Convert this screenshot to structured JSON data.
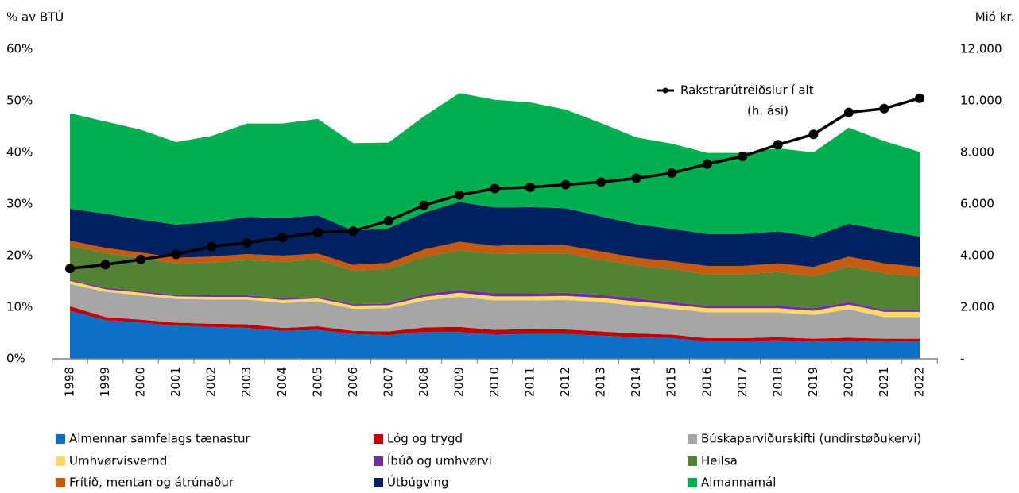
{
  "chart_data": {
    "type": "stacked_area_line",
    "y_label": "% av BTÚ",
    "y2_label": "Mió kr.",
    "categories": [
      "1998",
      "1999",
      "2000",
      "2001",
      "2002",
      "2003",
      "2004",
      "2005",
      "2006",
      "2007",
      "2008",
      "2009",
      "2010",
      "2011",
      "2012",
      "2013",
      "2014",
      "2015",
      "2016",
      "2017",
      "2018",
      "2019",
      "2020",
      "2021",
      "2022"
    ],
    "ylim": [
      0,
      60
    ],
    "yticks": [
      {
        "value": 0,
        "label": "0%"
      },
      {
        "value": 10,
        "label": "10%"
      },
      {
        "value": 20,
        "label": "20%"
      },
      {
        "value": 30,
        "label": "30%"
      },
      {
        "value": 40,
        "label": "40%"
      },
      {
        "value": 50,
        "label": "50%"
      },
      {
        "value": 60,
        "label": "60%"
      }
    ],
    "y2lim": [
      0,
      12000
    ],
    "y2ticks": [
      {
        "value": 0,
        "label": "-"
      },
      {
        "value": 2000,
        "label": "2.000"
      },
      {
        "value": 4000,
        "label": "4.000"
      },
      {
        "value": 6000,
        "label": "6.000"
      },
      {
        "value": 8000,
        "label": "8.000"
      },
      {
        "value": 10000,
        "label": "10.000"
      },
      {
        "value": 12000,
        "label": "12.000"
      }
    ],
    "series": [
      {
        "name": "Almennar samfelags tænastur",
        "color": "#0f6fc6",
        "values": [
          9.3,
          7.5,
          7.0,
          6.4,
          6.2,
          6.0,
          5.4,
          5.6,
          4.8,
          4.6,
          5.2,
          5.2,
          4.7,
          4.8,
          4.8,
          4.5,
          4.2,
          4.0,
          3.4,
          3.4,
          3.6,
          3.3,
          3.5,
          3.3,
          3.4
        ]
      },
      {
        "name": "Lóg og trygd",
        "color": "#c00000",
        "values": [
          0.9,
          0.6,
          0.6,
          0.6,
          0.6,
          0.7,
          0.6,
          0.7,
          0.6,
          0.7,
          0.9,
          1.0,
          0.9,
          1.0,
          0.9,
          0.8,
          0.7,
          0.7,
          0.6,
          0.6,
          0.6,
          0.6,
          0.6,
          0.6,
          0.5
        ]
      },
      {
        "name": "Búskaparviðurskifti (undirstøðukervi)",
        "color": "#a6a6a6",
        "values": [
          4.3,
          4.9,
          4.7,
          4.6,
          4.7,
          4.8,
          4.8,
          4.8,
          4.3,
          4.5,
          5.2,
          5.8,
          5.7,
          5.5,
          5.7,
          5.7,
          5.4,
          5.0,
          5.0,
          5.0,
          4.8,
          4.6,
          5.5,
          4.2,
          4.2
        ]
      },
      {
        "name": "Umhvørvisvernd",
        "color": "#ffd966",
        "values": [
          0.6,
          0.5,
          0.5,
          0.5,
          0.5,
          0.5,
          0.6,
          0.6,
          0.6,
          0.6,
          0.7,
          0.8,
          0.8,
          0.8,
          0.8,
          0.8,
          0.8,
          0.8,
          0.8,
          0.8,
          0.8,
          0.8,
          0.9,
          1.0,
          1.0
        ]
      },
      {
        "name": "Íbúð og umhvørvi",
        "color": "#7030a0",
        "values": [
          0.2,
          0.3,
          0.3,
          0.3,
          0.3,
          0.3,
          0.3,
          0.3,
          0.3,
          0.3,
          0.5,
          0.6,
          0.6,
          0.6,
          0.6,
          0.6,
          0.6,
          0.5,
          0.5,
          0.5,
          0.5,
          0.5,
          0.5,
          0.4,
          0.4
        ]
      },
      {
        "name": "Heilsa",
        "color": "#548235",
        "values": [
          6.6,
          6.7,
          6.4,
          6.1,
          6.4,
          6.8,
          7.1,
          7.2,
          6.5,
          6.7,
          7.2,
          7.6,
          7.6,
          7.7,
          7.6,
          6.8,
          6.4,
          6.4,
          6.1,
          6.1,
          6.5,
          6.2,
          6.9,
          7.1,
          6.5
        ]
      },
      {
        "name": "Frítíð, mentan og átrúnaður",
        "color": "#c55a11",
        "values": [
          1.0,
          1.0,
          1.1,
          1.1,
          1.1,
          1.2,
          1.2,
          1.2,
          1.1,
          1.2,
          1.5,
          1.7,
          1.6,
          1.7,
          1.6,
          1.6,
          1.5,
          1.5,
          1.6,
          1.6,
          1.7,
          1.8,
          1.9,
          1.9,
          1.8
        ]
      },
      {
        "name": "Útbúgving",
        "color": "#002060",
        "values": [
          6.2,
          6.6,
          6.4,
          6.4,
          6.7,
          7.2,
          7.3,
          7.4,
          6.6,
          6.7,
          7.1,
          7.7,
          7.4,
          7.3,
          7.2,
          6.8,
          6.5,
          6.3,
          6.2,
          6.2,
          6.2,
          5.9,
          6.4,
          6.4,
          5.9
        ]
      },
      {
        "name": "Almannamál",
        "color": "#00b050",
        "values": [
          18.5,
          17.9,
          17.4,
          16.0,
          16.7,
          18.1,
          18.3,
          18.7,
          17.0,
          16.6,
          18.7,
          21.1,
          20.9,
          20.3,
          19.1,
          18.1,
          16.8,
          16.5,
          15.7,
          15.7,
          16.1,
          16.3,
          18.6,
          17.3,
          16.4
        ]
      },
      {
        "name": "Rakstrarútreiðslur í alt",
        "annotation": "(h. ási)",
        "color": "#000000",
        "axis": "y2",
        "type": "line",
        "values": [
          3500,
          3650,
          3850,
          4050,
          4350,
          4500,
          4700,
          4900,
          4950,
          5350,
          5950,
          6350,
          6600,
          6650,
          6750,
          6850,
          7000,
          7200,
          7550,
          7850,
          8300,
          8700,
          9550,
          9700,
          10100
        ]
      }
    ]
  }
}
